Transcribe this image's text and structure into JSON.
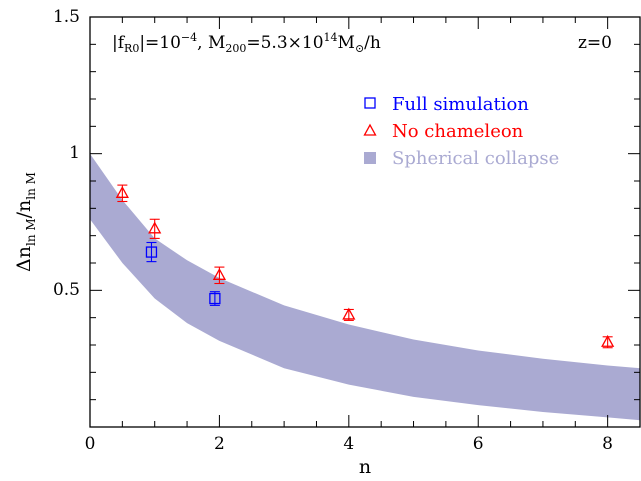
{
  "chart_data": {
    "type": "scatter",
    "xlabel": "n",
    "ylabel": {
      "delta": "Δn",
      "sub1": "ln M",
      "slash": "/n",
      "sub2": "ln M"
    },
    "xlim": [
      0,
      8.5
    ],
    "ylim": [
      0,
      1.5
    ],
    "x_ticks": [
      0,
      2,
      4,
      6,
      8
    ],
    "x_tick_labels": [
      "0",
      "2",
      "4",
      "6",
      "8"
    ],
    "y_ticks": [
      0.5,
      1,
      1.5
    ],
    "y_tick_labels": [
      "0.5",
      "1",
      "1.5"
    ],
    "annotation_left": {
      "part1": "|f",
      "part1_sub": "R0",
      "part2": "|=10",
      "part2_sup": "−4",
      "part3": ",  M",
      "part3_sub": "200",
      "part4": "=5.3×10",
      "part4_sup": "14",
      "part5": "M",
      "part5_sub": "⊙",
      "part6": "/h"
    },
    "annotation_right": "z=0",
    "series": [
      {
        "name": "Full simulation",
        "marker": "square",
        "color": "#0000ff",
        "points": [
          {
            "x": 0.95,
            "y": 0.64,
            "err": 0.035
          },
          {
            "x": 1.93,
            "y": 0.47,
            "err": 0.025
          }
        ]
      },
      {
        "name": "No chameleon",
        "marker": "triangle",
        "color": "#ff0000",
        "points": [
          {
            "x": 0.5,
            "y": 0.855,
            "err": 0.03
          },
          {
            "x": 1.0,
            "y": 0.725,
            "err": 0.035
          },
          {
            "x": 2.0,
            "y": 0.555,
            "err": 0.03
          },
          {
            "x": 4.0,
            "y": 0.41,
            "err": 0.02
          },
          {
            "x": 8.0,
            "y": 0.31,
            "err": 0.02
          }
        ]
      },
      {
        "name": "Spherical collapse",
        "marker": "band",
        "color": "#aaaad2",
        "band_x": [
          0,
          0.5,
          1,
          1.5,
          2,
          3,
          4,
          5,
          6,
          7,
          8,
          8.5
        ],
        "band_upper": [
          1.0,
          0.83,
          0.69,
          0.61,
          0.545,
          0.445,
          0.375,
          0.32,
          0.28,
          0.25,
          0.225,
          0.215
        ],
        "band_lower": [
          0.76,
          0.6,
          0.47,
          0.38,
          0.315,
          0.215,
          0.155,
          0.11,
          0.08,
          0.055,
          0.035,
          0.025
        ]
      }
    ],
    "legend_position": "upper-right"
  }
}
